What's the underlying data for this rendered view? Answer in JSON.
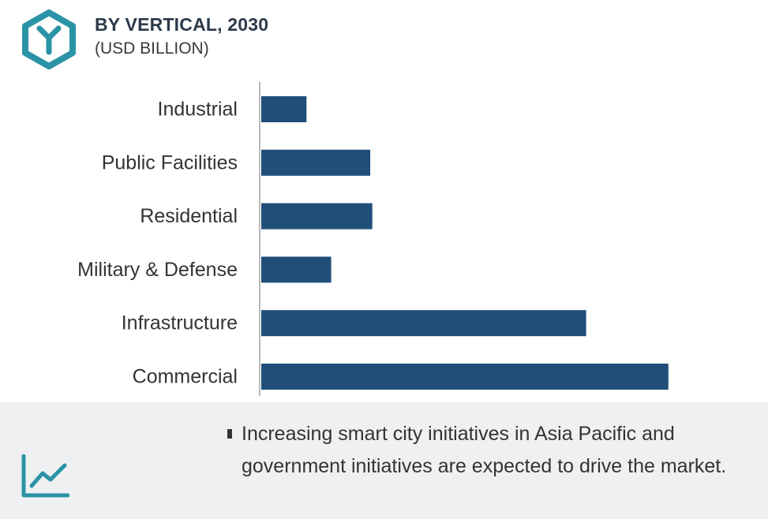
{
  "header": {
    "title": "BY VERTICAL, 2030",
    "subtitle": "(USD BILLION)"
  },
  "colors": {
    "bar": "#1f4e79",
    "accent": "#2a93a6",
    "footer_bg": "#eef0f2"
  },
  "icons": {
    "logo": "hexagon-y-logo-icon",
    "trend": "line-chart-trend-icon"
  },
  "chart_data": {
    "type": "bar",
    "orientation": "horizontal",
    "title": "BY VERTICAL, 2030",
    "subtitle": "(USD BILLION)",
    "categories": [
      "Industrial",
      "Public Facilities",
      "Residential",
      "Military & Defense",
      "Infrastructure",
      "Commercial"
    ],
    "values": [
      2.2,
      5.3,
      5.4,
      3.4,
      15.8,
      19.8
    ],
    "xlim": [
      0,
      20
    ],
    "grid": false,
    "legend": "none"
  },
  "footer": {
    "note": "Increasing smart city initiatives in Asia Pacific and government initiatives are expected to drive the market."
  }
}
